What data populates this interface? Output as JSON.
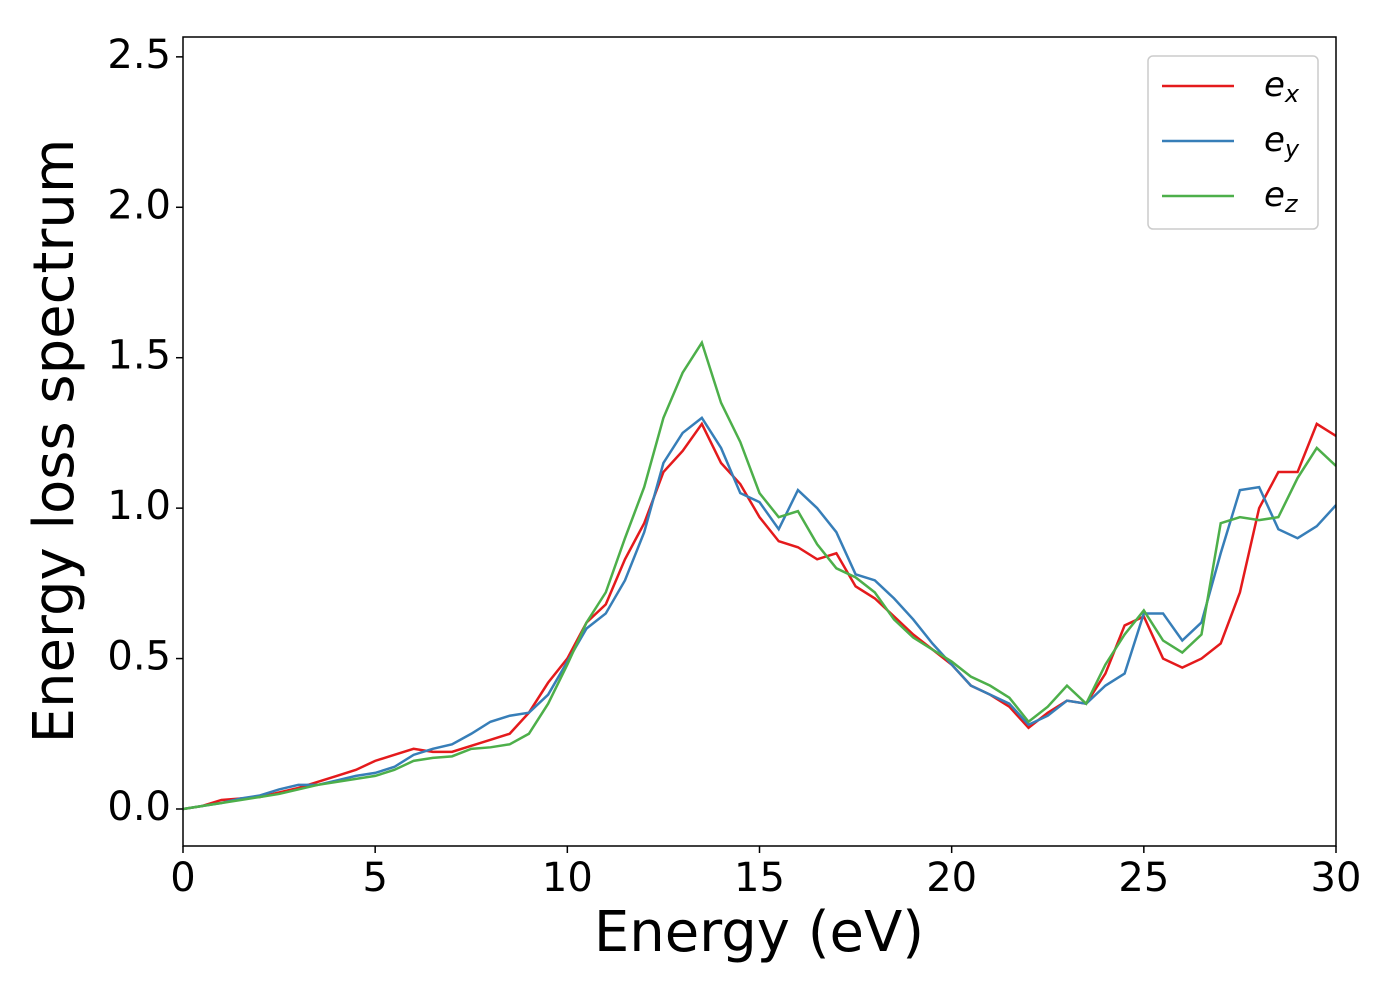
{
  "chart_data": {
    "type": "line",
    "xlabel": "Energy (eV)",
    "ylabel": "Energy loss spectrum",
    "x": [
      0,
      0.5,
      1,
      1.5,
      2,
      2.5,
      3,
      3.5,
      4,
      4.5,
      5,
      5.5,
      6,
      6.5,
      7,
      7.5,
      8,
      8.5,
      9,
      9.5,
      10,
      10.5,
      11,
      11.5,
      12,
      12.5,
      13,
      13.5,
      14,
      14.5,
      15,
      15.5,
      16,
      16.5,
      17,
      17.5,
      18,
      18.5,
      19,
      19.5,
      20,
      20.5,
      21,
      21.5,
      22,
      22.5,
      23,
      23.5,
      24,
      24.5,
      25,
      25.5,
      26,
      26.5,
      27,
      27.5,
      28,
      28.5,
      29,
      29.5,
      30
    ],
    "series": [
      {
        "name": "ex",
        "color": "#e41a1c",
        "values": [
          0,
          0.01,
          0.03,
          0.035,
          0.04,
          0.055,
          0.07,
          0.09,
          0.11,
          0.13,
          0.16,
          0.18,
          0.2,
          0.19,
          0.19,
          0.21,
          0.23,
          0.25,
          0.32,
          0.42,
          0.5,
          0.62,
          0.68,
          0.83,
          0.95,
          1.12,
          1.19,
          1.28,
          1.15,
          1.08,
          0.97,
          0.89,
          0.87,
          0.83,
          0.85,
          0.74,
          0.7,
          0.64,
          0.58,
          0.53,
          0.48,
          0.41,
          0.38,
          0.34,
          0.27,
          0.32,
          0.36,
          0.35,
          0.45,
          0.61,
          0.64,
          0.5,
          0.47,
          0.5,
          0.55,
          0.72,
          1.0,
          1.12,
          1.12,
          1.28,
          1.24
        ]
      },
      {
        "name": "ey",
        "color": "#377eb8",
        "values": [
          0,
          0.01,
          0.02,
          0.035,
          0.045,
          0.065,
          0.08,
          0.08,
          0.095,
          0.11,
          0.12,
          0.14,
          0.18,
          0.2,
          0.215,
          0.25,
          0.29,
          0.31,
          0.32,
          0.38,
          0.49,
          0.6,
          0.65,
          0.76,
          0.92,
          1.15,
          1.25,
          1.3,
          1.2,
          1.05,
          1.02,
          0.93,
          1.06,
          1.0,
          0.92,
          0.78,
          0.76,
          0.7,
          0.63,
          0.55,
          0.48,
          0.41,
          0.38,
          0.35,
          0.28,
          0.31,
          0.36,
          0.35,
          0.41,
          0.45,
          0.65,
          0.65,
          0.56,
          0.62,
          0.85,
          1.06,
          1.07,
          0.93,
          0.9,
          0.94,
          1.01
        ]
      },
      {
        "name": "ez",
        "color": "#4daf4a",
        "values": [
          0,
          0.01,
          0.02,
          0.03,
          0.04,
          0.05,
          0.065,
          0.08,
          0.09,
          0.1,
          0.11,
          0.13,
          0.16,
          0.17,
          0.175,
          0.2,
          0.205,
          0.215,
          0.25,
          0.35,
          0.48,
          0.62,
          0.72,
          0.9,
          1.07,
          1.3,
          1.45,
          1.55,
          1.35,
          1.22,
          1.05,
          0.97,
          0.99,
          0.88,
          0.8,
          0.77,
          0.72,
          0.63,
          0.57,
          0.53,
          0.49,
          0.44,
          0.41,
          0.37,
          0.29,
          0.34,
          0.41,
          0.35,
          0.48,
          0.58,
          0.66,
          0.56,
          0.52,
          0.58,
          0.95,
          0.97,
          0.96,
          0.97,
          1.1,
          1.2,
          1.14
        ]
      }
    ],
    "xlim": [
      0,
      30
    ],
    "xticks": [
      0,
      5,
      10,
      15,
      20,
      25,
      30
    ],
    "ylim": [
      -0.123,
      2.566
    ],
    "yticks": [
      {
        "value": 0,
        "label": "0.0"
      },
      0.5,
      {
        "value": 1,
        "label": "1.0"
      },
      1.5,
      {
        "value": 2,
        "label": "2.0"
      },
      2.5
    ],
    "legend": "upper right",
    "grid": false
  }
}
